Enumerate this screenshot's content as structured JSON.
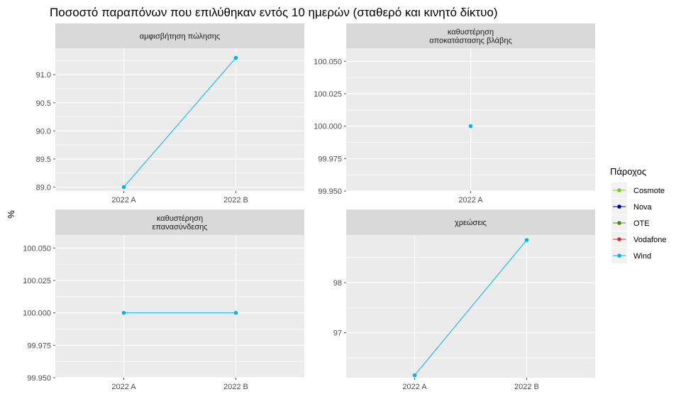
{
  "chart_data": {
    "type": "line",
    "title": "Ποσοστό παραπόνων που επιλύθηκαν εντός 10 ημερών (σταθερό και κινητό δίκτυο)",
    "ylabel": "%",
    "legend": {
      "title": "Πάροχος",
      "placement": "right",
      "entries": [
        {
          "name": "Cosmote",
          "color": "#7CCB1A"
        },
        {
          "name": "Nova",
          "color": "#00008B"
        },
        {
          "name": "OTE",
          "color": "#4C8C00"
        },
        {
          "name": "Vodafone",
          "color": "#CD3333"
        },
        {
          "name": "Wind",
          "color": "#00B2EE"
        }
      ]
    },
    "grid": true,
    "facets": [
      {
        "strip": [
          "αμφισβήτηση πώλησης"
        ],
        "categories": [
          "2022 A",
          "2022 B"
        ],
        "ylim": [
          88.93,
          91.47
        ],
        "yticks": [
          "89.0",
          "89.5",
          "90.0",
          "90.5",
          "91.0"
        ],
        "series": [
          {
            "name": "Wind",
            "x": [
              "2022 A",
              "2022 B"
            ],
            "values": [
              89.0,
              91.3
            ]
          }
        ]
      },
      {
        "strip": [
          "καθυστέρηση",
          "αποκατάστασης βλάβης"
        ],
        "categories": [
          "2022 A"
        ],
        "ylim": [
          99.95,
          100.06
        ],
        "yticks": [
          "99.950",
          "99.975",
          "100.000",
          "100.025",
          "100.050"
        ],
        "series": [
          {
            "name": "Wind",
            "x": [
              "2022 A"
            ],
            "values": [
              100.0
            ]
          }
        ]
      },
      {
        "strip": [
          "καθυστέρηση",
          "επανασύνδεσης"
        ],
        "categories": [
          "2022 A",
          "2022 B"
        ],
        "ylim": [
          99.95,
          100.06
        ],
        "yticks": [
          "99.950",
          "99.975",
          "100.000",
          "100.025",
          "100.050"
        ],
        "series": [
          {
            "name": "Wind",
            "x": [
              "2022 A",
              "2022 B"
            ],
            "values": [
              100.0,
              100.0
            ]
          }
        ]
      },
      {
        "strip": [
          "χρεώσεις"
        ],
        "categories": [
          "2022 A",
          "2022 B"
        ],
        "ylim": [
          96.1,
          98.95
        ],
        "yticks": [
          "97",
          "98"
        ],
        "series": [
          {
            "name": "Wind",
            "x": [
              "2022 A",
              "2022 B"
            ],
            "values": [
              96.15,
              98.85
            ]
          }
        ]
      }
    ]
  }
}
